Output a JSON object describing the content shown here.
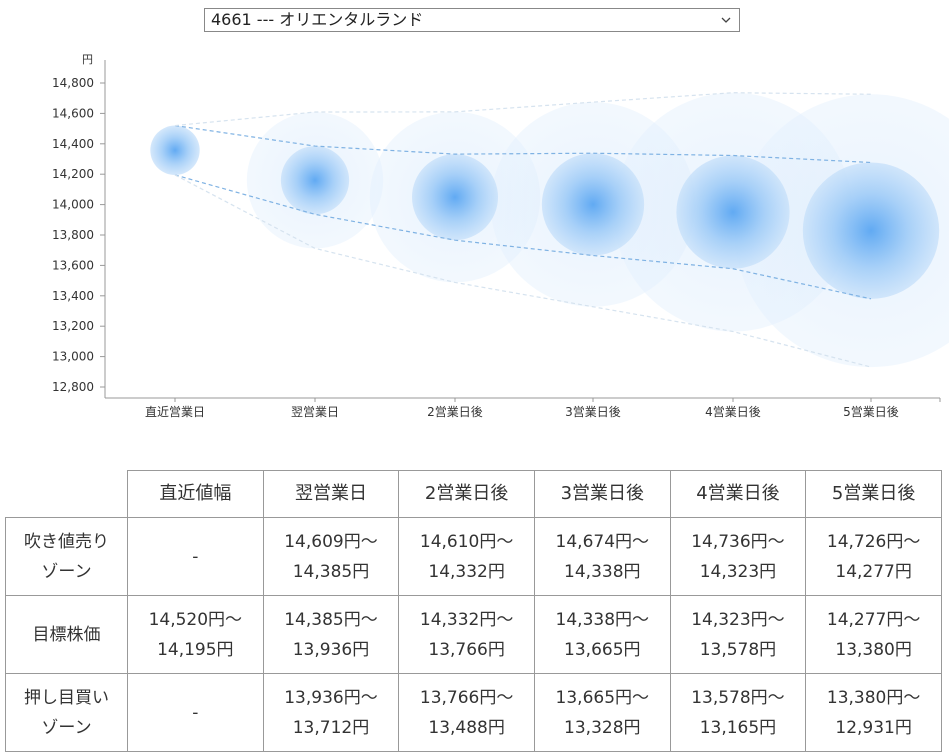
{
  "selector": {
    "value": "4661 --- オリエンタルランド"
  },
  "chart_data": {
    "type": "bubble-forecast",
    "y_unit": "円",
    "ylim": [
      12800,
      14800
    ],
    "y_ticks": [
      12800,
      13000,
      13200,
      13400,
      13600,
      13800,
      14000,
      14200,
      14400,
      14600,
      14800
    ],
    "y_tick_labels": [
      "12,800",
      "13,000",
      "13,200",
      "13,400",
      "13,600",
      "13,800",
      "14,000",
      "14,200",
      "14,400",
      "14,600",
      "14,800"
    ],
    "categories": [
      "直近営業日",
      "翌営業日",
      "2営業日後",
      "3営業日後",
      "4営業日後",
      "5営業日後"
    ],
    "target_high": [
      14520,
      14385,
      14332,
      14338,
      14323,
      14277
    ],
    "target_low": [
      14195,
      13936,
      13766,
      13665,
      13578,
      13380
    ],
    "outer_high": [
      14520,
      14609,
      14610,
      14674,
      14736,
      14726
    ],
    "outer_low": [
      14195,
      13712,
      13488,
      13328,
      13165,
      12931
    ]
  },
  "table": {
    "headers": [
      "",
      "直近値幅",
      "翌営業日",
      "2営業日後",
      "3営業日後",
      "4営業日後",
      "5営業日後"
    ],
    "rows": [
      {
        "label": [
          "吹き値売り",
          "ゾーン"
        ],
        "cells": [
          [
            "-"
          ],
          [
            "14,609円〜",
            "14,385円"
          ],
          [
            "14,610円〜",
            "14,332円"
          ],
          [
            "14,674円〜",
            "14,338円"
          ],
          [
            "14,736円〜",
            "14,323円"
          ],
          [
            "14,726円〜",
            "14,277円"
          ]
        ]
      },
      {
        "label": [
          "目標株価"
        ],
        "cells": [
          [
            "14,520円〜",
            "14,195円"
          ],
          [
            "14,385円〜",
            "13,936円"
          ],
          [
            "14,332円〜",
            "13,766円"
          ],
          [
            "14,338円〜",
            "13,665円"
          ],
          [
            "14,323円〜",
            "13,578円"
          ],
          [
            "14,277円〜",
            "13,380円"
          ]
        ]
      },
      {
        "label": [
          "押し目買い",
          "ゾーン"
        ],
        "cells": [
          [
            "-"
          ],
          [
            "13,936円〜",
            "13,712円"
          ],
          [
            "13,766円〜",
            "13,488円"
          ],
          [
            "13,665円〜",
            "13,328円"
          ],
          [
            "13,578円〜",
            "13,165円"
          ],
          [
            "13,380円〜",
            "12,931円"
          ]
        ]
      }
    ]
  }
}
